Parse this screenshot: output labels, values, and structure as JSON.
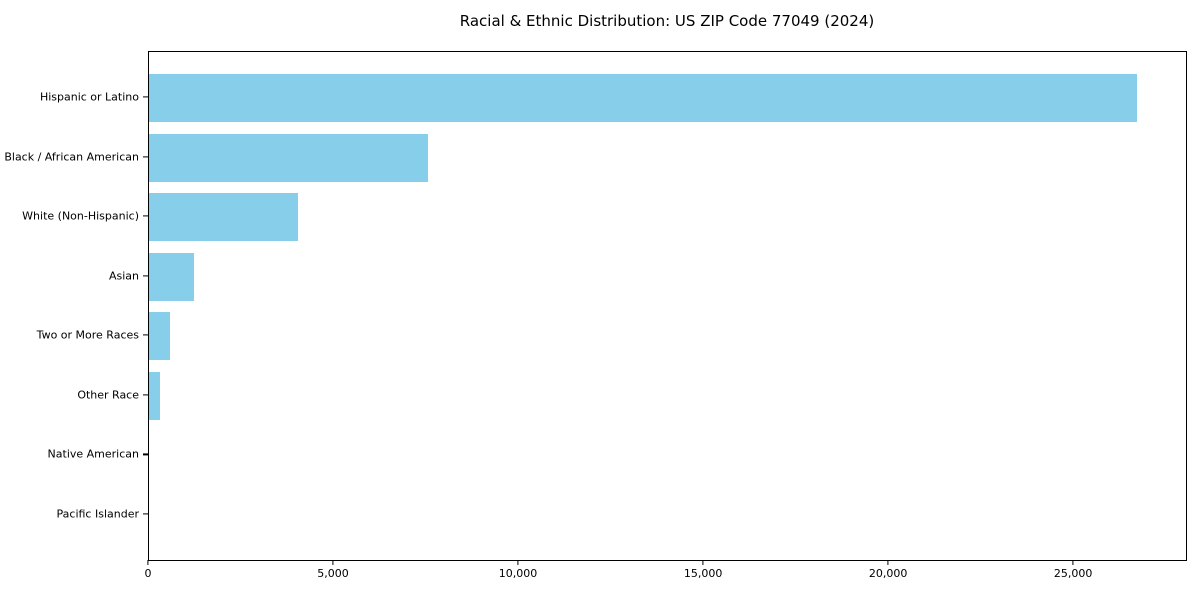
{
  "figure": {
    "background": "#ffffff",
    "text_color": "#000000",
    "spine_color": "#000000"
  },
  "chart_data": {
    "type": "bar",
    "orientation": "horizontal",
    "title": "Racial & Ethnic Distribution: US ZIP Code 77049 (2024)",
    "categories": [
      "Hispanic or Latino",
      "Black / African American",
      "White (Non-Hispanic)",
      "Asian",
      "Two or More Races",
      "Other Race",
      "Native American",
      "Pacific Islander"
    ],
    "values": [
      26700,
      7550,
      4030,
      1220,
      570,
      300,
      0,
      0
    ],
    "bar_color": "#87CEEB",
    "xlabel": "",
    "ylabel": "",
    "xlim": [
      0,
      28050
    ],
    "xticks": {
      "values": [
        0,
        5000,
        10000,
        15000,
        20000,
        25000
      ],
      "labels": [
        "0",
        "5,000",
        "10,000",
        "15,000",
        "20,000",
        "25,000"
      ]
    },
    "grid": false,
    "legend": null
  }
}
